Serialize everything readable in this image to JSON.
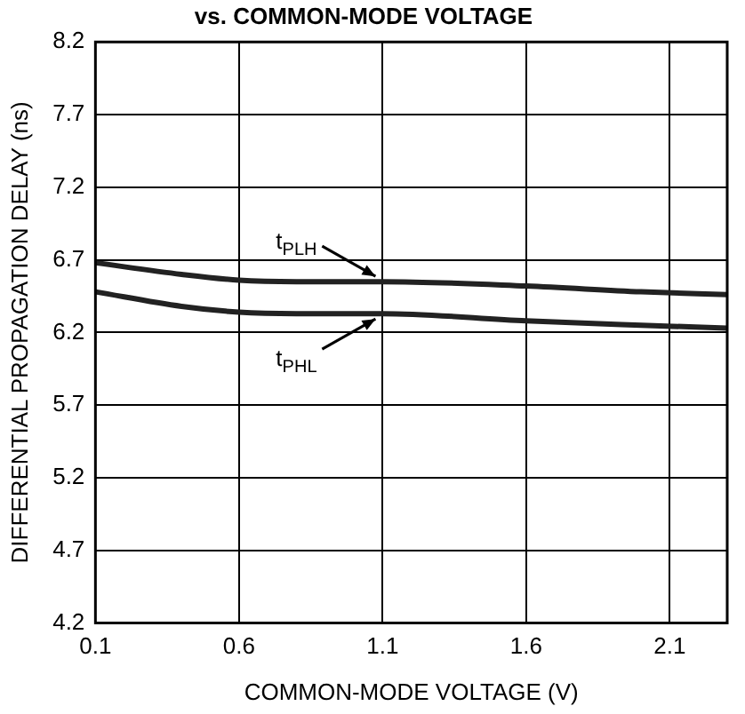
{
  "chart_data": {
    "type": "line",
    "title": "vs. COMMON-MODE VOLTAGE",
    "xlabel": "COMMON-MODE VOLTAGE (V)",
    "ylabel": "DIFFERENTIAL PROPAGATION DELAY (ns)",
    "x": [
      0.1,
      0.4,
      0.6,
      0.8,
      1.1,
      1.6,
      2.0,
      2.3
    ],
    "series": [
      {
        "color": "#222222",
        "values": [
          6.68,
          6.6,
          6.56,
          6.55,
          6.55,
          6.52,
          6.48,
          6.46
        ]
      },
      {
        "color": "#222222",
        "values": [
          6.48,
          6.38,
          6.34,
          6.33,
          6.33,
          6.28,
          6.25,
          6.23
        ]
      }
    ],
    "xlim": [
      0.1,
      2.3
    ],
    "xticks": [
      0.1,
      0.6,
      1.1,
      1.6,
      2.1
    ],
    "ylim": [
      4.2,
      8.2
    ],
    "yticks": [
      4.2,
      4.7,
      5.2,
      5.7,
      6.2,
      6.7,
      7.2,
      7.7,
      8.2
    ],
    "annotations": [
      {
        "text": "t$_{PLH}$",
        "x": 1.1,
        "y": 6.55
      },
      {
        "text": "t$_{PHL}$",
        "x": 1.1,
        "y": 6.33
      }
    ],
    "grid": true,
    "legend": false,
    "marker": "none",
    "line_style": "solid"
  }
}
